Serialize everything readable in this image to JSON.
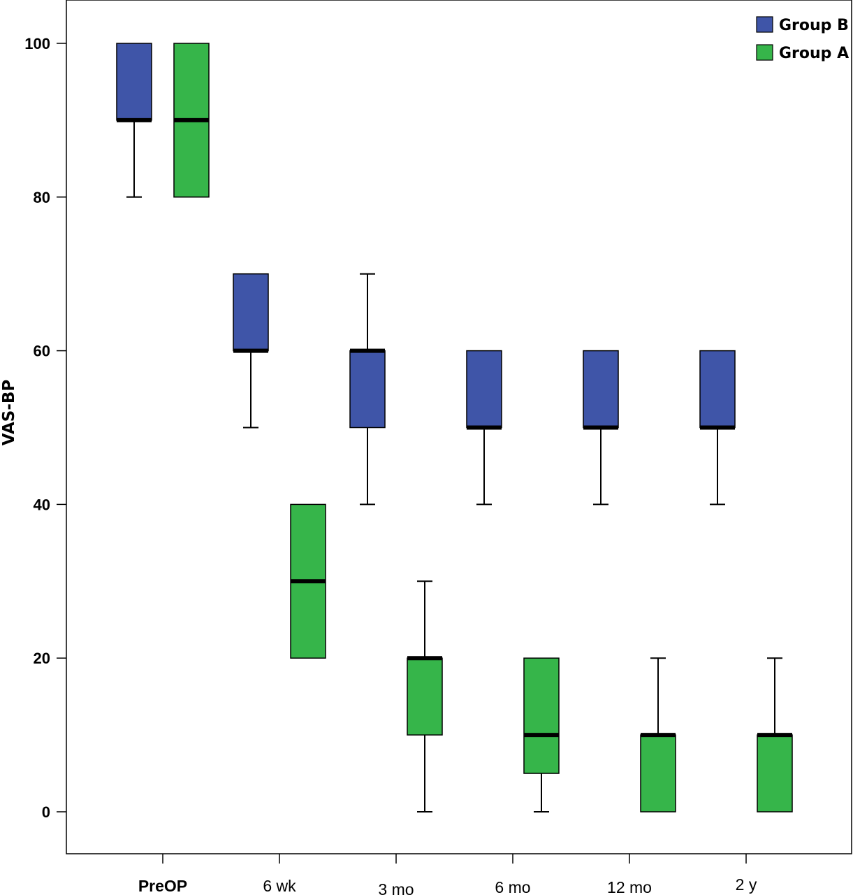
{
  "chart_data": {
    "type": "boxplot",
    "ylabel": "VAS-BP",
    "xlabel": "",
    "ylim": [
      -5,
      105
    ],
    "yticks": [
      0,
      20,
      40,
      60,
      80,
      100
    ],
    "categories": [
      "PreOP",
      "6 wk",
      "3 mo",
      "6 mo",
      "12 mo",
      "2 y"
    ],
    "legend_position": "top-right",
    "grid": false,
    "series": [
      {
        "name": "Group B",
        "color": "#3f55a8",
        "boxes": [
          {
            "min": 80,
            "q1": 90,
            "median": 90,
            "q3": 100,
            "max": 100
          },
          {
            "min": 50,
            "q1": 60,
            "median": 60,
            "q3": 70,
            "max": 70
          },
          {
            "min": 40,
            "q1": 50,
            "median": 60,
            "q3": 60,
            "max": 70
          },
          {
            "min": 40,
            "q1": 50,
            "median": 50,
            "q3": 60,
            "max": 60
          },
          {
            "min": 40,
            "q1": 50,
            "median": 50,
            "q3": 60,
            "max": 60
          },
          {
            "min": 40,
            "q1": 50,
            "median": 50,
            "q3": 60,
            "max": 60
          }
        ]
      },
      {
        "name": "Group A",
        "color": "#36b54a",
        "boxes": [
          {
            "min": 80,
            "q1": 80,
            "median": 90,
            "q3": 100,
            "max": 100
          },
          {
            "min": 20,
            "q1": 20,
            "median": 30,
            "q3": 40,
            "max": 40
          },
          {
            "min": 0,
            "q1": 10,
            "median": 20,
            "q3": 20,
            "max": 30
          },
          {
            "min": 0,
            "q1": 5,
            "median": 10,
            "q3": 20,
            "max": 20
          },
          {
            "min": 0,
            "q1": 0,
            "median": 10,
            "q3": 10,
            "max": 20
          },
          {
            "min": 0,
            "q1": 0,
            "median": 10,
            "q3": 10,
            "max": 20
          }
        ]
      }
    ]
  }
}
